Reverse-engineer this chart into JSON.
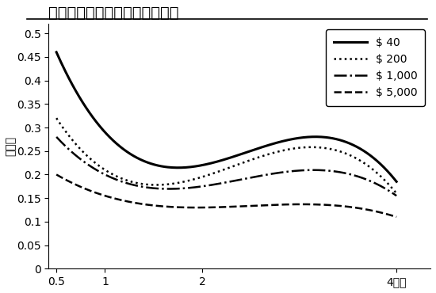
{
  "title": "時期と金額の相関で見る割引率",
  "ylabel": "割引率",
  "x_ticks": [
    0.5,
    1,
    2,
    4
  ],
  "x_tick_labels": [
    "0.5",
    "1",
    "2",
    "4年後"
  ],
  "xlim": [
    0.42,
    4.35
  ],
  "ylim": [
    0,
    0.52
  ],
  "y_ticks": [
    0,
    0.05,
    0.1,
    0.15,
    0.2,
    0.25,
    0.3,
    0.35,
    0.4,
    0.45,
    0.5
  ],
  "y_tick_labels": [
    "0",
    "0.05",
    "0.1",
    "0.15",
    "0.2",
    "0.25",
    "0.3",
    "0.35",
    "0.4",
    "0.45",
    "0.5"
  ],
  "series": [
    {
      "label": "$40",
      "x": [
        0.5,
        1,
        2,
        4
      ],
      "y": [
        0.46,
        0.29,
        0.22,
        0.185
      ],
      "linestyle": "solid",
      "linewidth": 2.2,
      "color": "#000000"
    },
    {
      "label": "$200",
      "x": [
        0.5,
        1,
        2,
        4
      ],
      "y": [
        0.32,
        0.21,
        0.195,
        0.16
      ],
      "linestyle": "dotted",
      "linewidth": 1.8,
      "color": "#000000"
    },
    {
      "label": "$1,000",
      "x": [
        0.5,
        1,
        2,
        4
      ],
      "y": [
        0.28,
        0.2,
        0.175,
        0.155
      ],
      "linestyle": "dashdot",
      "linewidth": 1.8,
      "color": "#000000"
    },
    {
      "label": "$5,000",
      "x": [
        0.5,
        1,
        2,
        4
      ],
      "y": [
        0.2,
        0.155,
        0.13,
        0.11
      ],
      "linestyle": "dashed",
      "linewidth": 1.8,
      "color": "#000000"
    }
  ],
  "legend_labels": [
    "$ 40",
    "$ 200",
    "$ 1,000",
    "$ 5,000"
  ],
  "legend_linestyles": [
    "solid",
    "dotted",
    "dashdot",
    "dashed"
  ],
  "legend_linewidths": [
    2.2,
    1.8,
    1.8,
    1.8
  ],
  "background_color": "#ffffff",
  "title_fontsize": 14,
  "tick_fontsize": 10,
  "legend_fontsize": 10,
  "ylabel_fontsize": 10
}
